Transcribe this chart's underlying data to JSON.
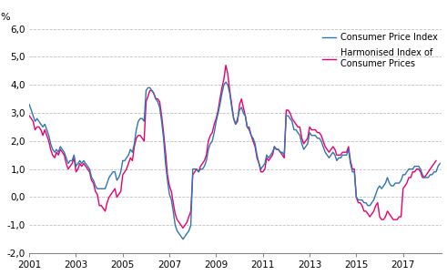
{
  "ylabel": "%",
  "ylim": [
    -2.0,
    6.0
  ],
  "yticks": [
    -2.0,
    -1.0,
    0.0,
    1.0,
    2.0,
    3.0,
    4.0,
    5.0,
    6.0
  ],
  "ytick_labels": [
    "-2,0",
    "-1,0",
    "0,0",
    "1,0",
    "2,0",
    "3,0",
    "4,0",
    "5,0",
    "6,0"
  ],
  "xtick_years": [
    2001,
    2003,
    2005,
    2007,
    2009,
    2011,
    2013,
    2015,
    2017
  ],
  "cpi_color": "#2E75B6",
  "hicp_color": "#E8006D",
  "legend_cpi": "Consumer Price Index",
  "legend_hicp": "Harmonised Index of\nConsumer Prices",
  "grid_color": "#C0C0C0",
  "grid_linestyle": "--",
  "background_color": "#ffffff",
  "line_width": 1.0,
  "cpi_data": [
    3.3,
    3.1,
    2.9,
    2.7,
    2.8,
    2.7,
    2.6,
    2.5,
    2.6,
    2.4,
    2.2,
    1.9,
    1.7,
    1.6,
    1.7,
    1.6,
    1.8,
    1.7,
    1.6,
    1.4,
    1.2,
    1.3,
    1.3,
    1.5,
    1.1,
    1.2,
    1.3,
    1.2,
    1.3,
    1.2,
    1.1,
    1.0,
    0.7,
    0.6,
    0.4,
    0.3,
    0.3,
    0.3,
    0.3,
    0.3,
    0.5,
    0.7,
    0.8,
    0.9,
    0.9,
    0.6,
    0.7,
    0.9,
    1.3,
    1.3,
    1.4,
    1.5,
    1.7,
    1.6,
    1.9,
    2.4,
    2.7,
    2.8,
    2.8,
    2.7,
    3.8,
    3.9,
    3.9,
    3.8,
    3.7,
    3.5,
    3.4,
    3.2,
    2.7,
    2.1,
    1.2,
    0.6,
    0.1,
    -0.1,
    -0.5,
    -1.0,
    -1.2,
    -1.3,
    -1.4,
    -1.5,
    -1.4,
    -1.3,
    -1.2,
    -1.0,
    1.0,
    1.0,
    1.0,
    0.9,
    1.0,
    1.0,
    1.1,
    1.3,
    1.7,
    1.9,
    2.0,
    2.3,
    2.7,
    3.0,
    3.3,
    3.7,
    4.0,
    4.1,
    4.0,
    3.7,
    3.2,
    2.8,
    2.6,
    2.8,
    3.1,
    3.2,
    3.0,
    2.9,
    2.5,
    2.5,
    2.2,
    2.1,
    1.9,
    1.5,
    1.2,
    1.0,
    1.1,
    1.2,
    1.5,
    1.4,
    1.5,
    1.6,
    1.8,
    1.7,
    1.7,
    1.6,
    1.6,
    1.5,
    2.9,
    2.9,
    2.8,
    2.7,
    2.4,
    2.4,
    2.3,
    2.2,
    1.9,
    1.7,
    1.8,
    1.9,
    2.3,
    2.2,
    2.2,
    2.2,
    2.1,
    2.1,
    2.0,
    1.8,
    1.6,
    1.5,
    1.4,
    1.5,
    1.6,
    1.5,
    1.3,
    1.4,
    1.4,
    1.5,
    1.5,
    1.5,
    1.7,
    1.2,
    0.9,
    0.9,
    0.0,
    -0.1,
    -0.1,
    -0.1,
    -0.2,
    -0.2,
    -0.3,
    -0.3,
    -0.2,
    -0.1,
    0.1,
    0.3,
    0.4,
    0.3,
    0.4,
    0.5,
    0.7,
    0.5,
    0.4,
    0.4,
    0.5,
    0.5,
    0.5,
    0.6,
    0.8,
    0.8,
    0.9,
    1.0,
    1.0,
    1.0,
    1.1,
    1.1,
    1.1,
    1.0,
    0.8,
    0.7,
    0.7,
    0.7,
    0.8,
    0.8,
    0.9,
    0.9,
    1.1,
    1.2
  ],
  "hicp_data": [
    2.9,
    2.8,
    2.7,
    2.4,
    2.5,
    2.5,
    2.4,
    2.2,
    2.4,
    2.2,
    2.0,
    1.7,
    1.5,
    1.4,
    1.6,
    1.5,
    1.7,
    1.6,
    1.5,
    1.2,
    1.0,
    1.1,
    1.2,
    1.4,
    0.9,
    1.0,
    1.2,
    1.1,
    1.2,
    1.1,
    1.0,
    0.9,
    0.6,
    0.5,
    0.2,
    0.1,
    -0.3,
    -0.3,
    -0.4,
    -0.5,
    -0.2,
    0.0,
    0.1,
    0.2,
    0.3,
    0.0,
    0.1,
    0.2,
    0.8,
    0.9,
    1.0,
    1.2,
    1.4,
    1.3,
    1.8,
    2.1,
    2.2,
    2.2,
    2.1,
    2.0,
    3.4,
    3.6,
    3.8,
    3.8,
    3.7,
    3.5,
    3.5,
    3.4,
    2.9,
    2.3,
    1.6,
    0.8,
    0.4,
    0.2,
    -0.2,
    -0.6,
    -0.8,
    -0.9,
    -1.0,
    -1.1,
    -1.0,
    -0.9,
    -0.7,
    -0.5,
    0.8,
    0.9,
    1.0,
    0.9,
    1.1,
    1.2,
    1.3,
    1.5,
    2.0,
    2.2,
    2.3,
    2.6,
    2.8,
    3.1,
    3.5,
    3.9,
    4.2,
    4.7,
    4.4,
    3.8,
    3.3,
    2.8,
    2.6,
    2.7,
    3.3,
    3.5,
    3.2,
    2.9,
    2.5,
    2.4,
    2.2,
    2.0,
    1.8,
    1.4,
    1.2,
    0.9,
    0.9,
    1.0,
    1.4,
    1.3,
    1.4,
    1.5,
    1.8,
    1.7,
    1.7,
    1.6,
    1.5,
    1.4,
    3.1,
    3.1,
    3.0,
    2.8,
    2.7,
    2.6,
    2.5,
    2.5,
    2.1,
    1.9,
    2.0,
    2.1,
    2.5,
    2.4,
    2.4,
    2.4,
    2.3,
    2.3,
    2.2,
    2.0,
    1.8,
    1.7,
    1.6,
    1.7,
    1.8,
    1.7,
    1.5,
    1.5,
    1.5,
    1.6,
    1.6,
    1.6,
    1.8,
    1.3,
    1.0,
    1.0,
    0.0,
    -0.2,
    -0.2,
    -0.3,
    -0.5,
    -0.5,
    -0.6,
    -0.7,
    -0.6,
    -0.5,
    -0.3,
    -0.2,
    -0.7,
    -0.8,
    -0.8,
    -0.7,
    -0.5,
    -0.6,
    -0.7,
    -0.8,
    -0.8,
    -0.8,
    -0.7,
    -0.7,
    0.3,
    0.4,
    0.5,
    0.7,
    0.7,
    0.9,
    0.9,
    1.0,
    1.0,
    0.9,
    0.7,
    0.7,
    0.8,
    0.9,
    1.0,
    1.1,
    1.2,
    1.3
  ]
}
